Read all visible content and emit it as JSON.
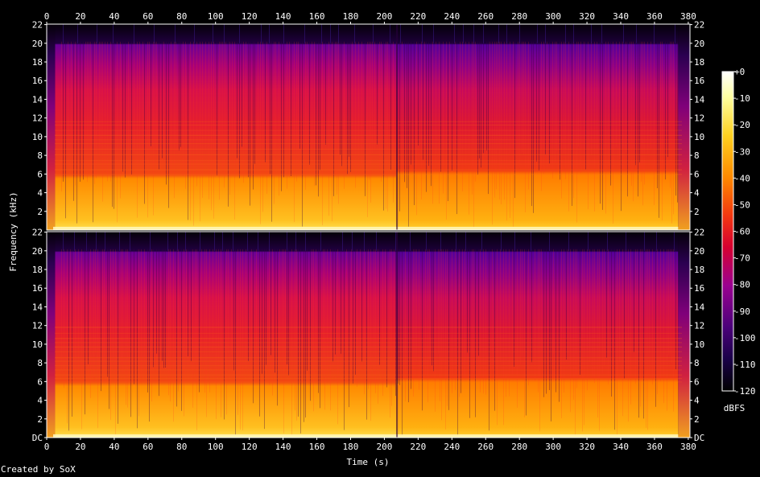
{
  "chart_data": {
    "type": "heatmap",
    "title": "",
    "xlabel": "Time (s)",
    "ylabel": "Frequency (kHz)",
    "x_ticks": [
      0,
      20,
      40,
      60,
      80,
      100,
      120,
      140,
      160,
      180,
      200,
      220,
      240,
      260,
      280,
      300,
      320,
      340,
      360,
      380
    ],
    "xlim": [
      0,
      381
    ],
    "channels": [
      {
        "y_ticks": [
          {
            "value": 2,
            "label": "2"
          },
          {
            "value": 4,
            "label": "4"
          },
          {
            "value": 6,
            "label": "6"
          },
          {
            "value": 8,
            "label": "8"
          },
          {
            "value": 10,
            "label": "10"
          },
          {
            "value": 12,
            "label": "12"
          },
          {
            "value": 14,
            "label": "14"
          },
          {
            "value": 16,
            "label": "16"
          },
          {
            "value": 18,
            "label": "18"
          },
          {
            "value": 20,
            "label": "20"
          },
          {
            "value": 22,
            "label": "22"
          }
        ],
        "ylim": [
          0,
          22.05
        ]
      },
      {
        "y_ticks": [
          {
            "value": 0,
            "label": "DC"
          },
          {
            "value": 2,
            "label": "2"
          },
          {
            "value": 4,
            "label": "4"
          },
          {
            "value": 6,
            "label": "6"
          },
          {
            "value": 8,
            "label": "8"
          },
          {
            "value": 10,
            "label": "10"
          },
          {
            "value": 12,
            "label": "12"
          },
          {
            "value": 14,
            "label": "14"
          },
          {
            "value": 16,
            "label": "16"
          },
          {
            "value": 18,
            "label": "18"
          },
          {
            "value": 20,
            "label": "20"
          },
          {
            "value": 22,
            "label": "22"
          }
        ],
        "ylim": [
          0,
          22.05
        ]
      }
    ],
    "colorbar": {
      "label": "dBFS",
      "range": [
        -120,
        0
      ],
      "ticks": [
        {
          "value": 0,
          "label": "+0"
        },
        {
          "value": -10,
          "label": "-10"
        },
        {
          "value": -20,
          "label": "-20"
        },
        {
          "value": -30,
          "label": "-30"
        },
        {
          "value": -40,
          "label": "-40"
        },
        {
          "value": -50,
          "label": "-50"
        },
        {
          "value": -60,
          "label": "-60"
        },
        {
          "value": -70,
          "label": "-70"
        },
        {
          "value": -80,
          "label": "-80"
        },
        {
          "value": -90,
          "label": "-90"
        },
        {
          "value": -100,
          "label": "-100"
        },
        {
          "value": -110,
          "label": "-110"
        },
        {
          "value": -120,
          "label": "-120"
        }
      ]
    },
    "spectral_profile": {
      "cutoff_khz": 20,
      "segments": [
        {
          "t0": 0,
          "t1": 5,
          "level_db": -75
        },
        {
          "t0": 5,
          "t1": 207,
          "level_db": -25
        },
        {
          "t0": 207,
          "t1": 374,
          "level_db": -30
        },
        {
          "t0": 374,
          "t1": 381,
          "level_db": -60
        }
      ]
    }
  },
  "credit": "Created by SoX",
  "colors": {
    "background": "#000000",
    "axis": "#ffffff",
    "palette": [
      "#000000",
      "#1a0048",
      "#4b007a",
      "#9a0090",
      "#d60030",
      "#f33810",
      "#fe8a00",
      "#ffd020",
      "#ffffa0",
      "#ffffff"
    ]
  }
}
